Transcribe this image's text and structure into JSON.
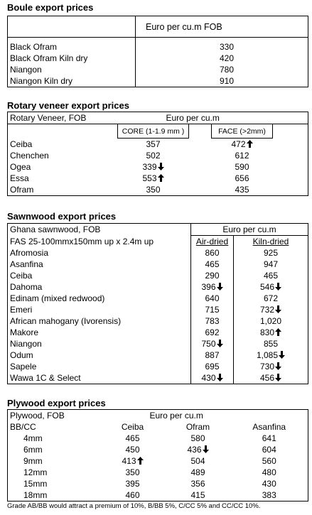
{
  "boule": {
    "title": "Boule export prices",
    "header": "Euro per cu.m FOB",
    "rows": [
      [
        "Black Ofram",
        "330"
      ],
      [
        "Black Ofram  Kiln dry",
        "420"
      ],
      [
        "Niangon",
        "780"
      ],
      [
        "Niangon Kiln dry",
        "910"
      ]
    ]
  },
  "rotary": {
    "title": "Rotary veneer export prices",
    "header": [
      "Rotary Veneer,  FOB",
      "Euro  per cu.m"
    ],
    "subheader": [
      "CORE (1-1.9 mm )",
      "FACE (>2mm)"
    ],
    "rows": [
      [
        "Ceiba",
        "357",
        "472"
      ],
      [
        "Chenchen",
        "502",
        "612"
      ],
      [
        "Ogea",
        "339",
        "590"
      ],
      [
        "Essa",
        "553",
        "656"
      ],
      [
        "Ofram",
        "350",
        "435"
      ]
    ]
  },
  "sawnwood": {
    "title": "Sawnwood export prices",
    "header": [
      "Ghana sawnwood, FOB",
      "Euro per cu.m"
    ],
    "subheader": [
      "FAS 25-100mmx150mm up x 2.4m up",
      "Air-dried",
      "Kiln-dried"
    ],
    "rows": [
      [
        "Afromosia",
        "860",
        "925"
      ],
      [
        "Asanfina",
        "465",
        "947"
      ],
      [
        "Ceiba",
        "290",
        "465"
      ],
      [
        "Dahoma",
        "396",
        "546"
      ],
      [
        "Edinam (mixed redwood)",
        "640",
        "672"
      ],
      [
        "Emeri",
        "715",
        "732"
      ],
      [
        "African mahogany (Ivorensis)",
        "783",
        "1,020"
      ],
      [
        "Makore",
        "692",
        "830"
      ],
      [
        "Niangon",
        "750",
        "855"
      ],
      [
        "Odum",
        "887",
        "1,085"
      ],
      [
        "Sapele",
        "695",
        "730"
      ],
      [
        "Wawa 1C & Select",
        "430",
        "456"
      ]
    ]
  },
  "plywood": {
    "title": "Plywood export prices",
    "header": [
      "Plywood, FOB",
      "Euro per cu.m"
    ],
    "subheader": [
      "BB/CC",
      "Ceiba",
      "Ofram",
      "Asanfina"
    ],
    "rows": [
      [
        "4mm",
        "465",
        "580",
        "641"
      ],
      [
        "6mm",
        "450",
        "436",
        "604"
      ],
      [
        "9mm",
        "413",
        "504",
        "560"
      ],
      [
        "12mm",
        "350",
        "489",
        "480"
      ],
      [
        "15mm",
        "395",
        "356",
        "430"
      ],
      [
        "18mm",
        "460",
        "415",
        "383"
      ]
    ]
  },
  "footnote": "Grade AB/BB would attract a premium of 10%, B/BB 5%, C/CC 5% and CC/CC 10%."
}
